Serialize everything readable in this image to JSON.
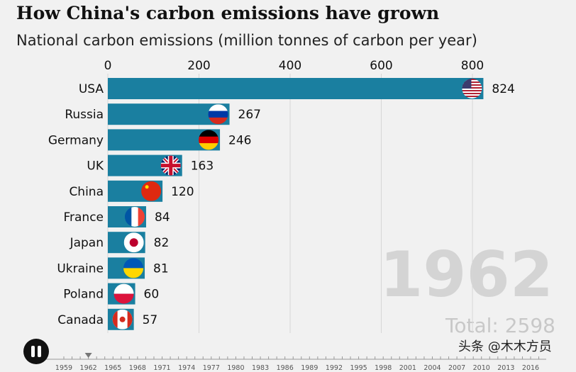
{
  "chart_data": {
    "type": "bar",
    "orientation": "horizontal",
    "title": "How China's carbon emissions have grown",
    "subtitle": "National carbon emissions (million tonnes of carbon per year)",
    "categories": [
      "USA",
      "Russia",
      "Germany",
      "UK",
      "China",
      "France",
      "Japan",
      "Ukraine",
      "Poland",
      "Canada"
    ],
    "values": [
      824,
      267,
      246,
      163,
      120,
      84,
      82,
      81,
      60,
      57
    ],
    "flags": [
      "us-flag-icon",
      "russia-flag-icon",
      "germany-flag-icon",
      "uk-flag-icon",
      "china-flag-icon",
      "france-flag-icon",
      "japan-flag-icon",
      "ukraine-flag-icon",
      "poland-flag-icon",
      "canada-flag-icon"
    ],
    "xlim": [
      0,
      800
    ],
    "xticks": [
      0,
      200,
      400,
      600,
      800
    ],
    "grid": true,
    "bar_color": "#1a7fa0",
    "year": "1962",
    "total_label": "Total: 2598",
    "timeline": {
      "years": [
        1959,
        1962,
        1965,
        1968,
        1971,
        1974,
        1977,
        1980,
        1983,
        1986,
        1989,
        1992,
        1995,
        1998,
        2001,
        2004,
        2007,
        2010,
        2013,
        2016
      ],
      "current": 1962
    }
  },
  "controls": {
    "pause_icon": "pause-icon"
  },
  "watermark": "头条 @木木方员"
}
